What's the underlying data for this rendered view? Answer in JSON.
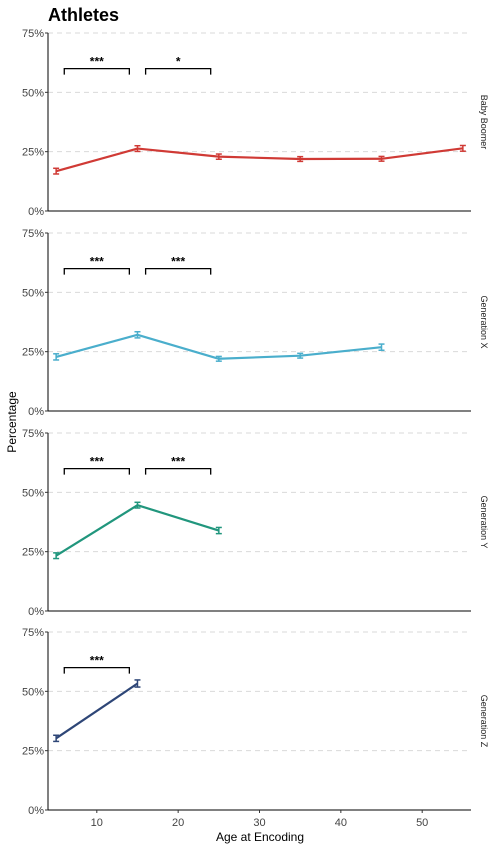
{
  "chart_data": {
    "type": "line",
    "title": "Athletes",
    "xlabel": "Age at Encoding",
    "ylabel": "Percentage",
    "xlim": [
      4,
      56
    ],
    "ylim": [
      0,
      75
    ],
    "x_ticks": [
      10,
      20,
      30,
      40,
      50
    ],
    "x_tick_labels": [
      "10",
      "20",
      "30",
      "40",
      "50"
    ],
    "y_ticks": [
      0,
      25,
      50,
      75
    ],
    "y_tick_labels": [
      "0%",
      "25%",
      "50%",
      "75%"
    ],
    "grid": "horizontal dashed",
    "legend": "none",
    "panels": [
      {
        "name": "Baby Boomer",
        "color": "#d03a35",
        "x": [
          5,
          15,
          25,
          35,
          45,
          55
        ],
        "y": [
          16.8,
          26.3,
          22.9,
          21.9,
          22.0,
          26.4
        ],
        "err": [
          1.2,
          1.2,
          1.1,
          1.0,
          1.0,
          1.2
        ],
        "brackets": [
          {
            "x1": 6,
            "x2": 14,
            "y": 60,
            "label": "***"
          },
          {
            "x1": 16,
            "x2": 24,
            "y": 60,
            "label": "*"
          }
        ]
      },
      {
        "name": "Generation X",
        "color": "#4aaecc",
        "x": [
          5,
          15,
          25,
          35,
          45
        ],
        "y": [
          22.8,
          32.1,
          22.0,
          23.3,
          26.9
        ],
        "err": [
          1.3,
          1.3,
          1.0,
          1.0,
          1.3
        ],
        "brackets": [
          {
            "x1": 6,
            "x2": 14,
            "y": 60,
            "label": "***"
          },
          {
            "x1": 16,
            "x2": 24,
            "y": 60,
            "label": "***"
          }
        ]
      },
      {
        "name": "Generation Y",
        "color": "#21967d",
        "x": [
          5,
          15,
          25
        ],
        "y": [
          23.3,
          44.6,
          33.9
        ],
        "err": [
          1.2,
          1.2,
          1.3
        ],
        "brackets": [
          {
            "x1": 6,
            "x2": 14,
            "y": 60,
            "label": "***"
          },
          {
            "x1": 16,
            "x2": 24,
            "y": 60,
            "label": "***"
          }
        ]
      },
      {
        "name": "Generation Z",
        "color": "#2e4677",
        "x": [
          5,
          15
        ],
        "y": [
          30.2,
          53.3
        ],
        "err": [
          1.3,
          1.5
        ],
        "brackets": [
          {
            "x1": 6,
            "x2": 14,
            "y": 60,
            "label": "***"
          }
        ]
      }
    ]
  }
}
